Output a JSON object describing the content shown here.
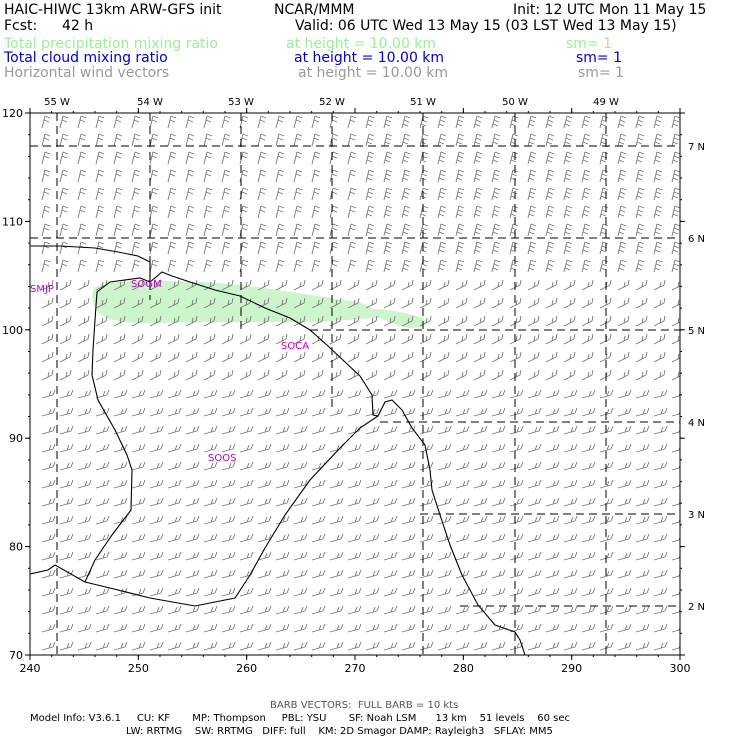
{
  "header": {
    "model_title": "HAIC-HIWC 13km ARW-GFS init",
    "org": "NCAR/MMM",
    "init": "Init: 12 UTC Mon 11 May 15",
    "fcst_label": "Fcst:",
    "fcst_value": "42 h",
    "valid": "Valid: 06 UTC Wed 13 May 15 (03 LST Wed 13 May 15)",
    "fields": [
      {
        "name": "Total precipitation mixing ratio",
        "height": "at height = 10.00 km",
        "sm": "sm= 1",
        "color": "#99ee99"
      },
      {
        "name": "Total cloud mixing ratio",
        "height": "at height = 10.00 km",
        "sm": "sm= 1",
        "color": "#0000cc"
      },
      {
        "name": "Horizontal wind vectors",
        "height": "at height = 10.00 km",
        "sm": "sm= 1",
        "color": "#999999"
      }
    ]
  },
  "map": {
    "x_ticks": [
      "240",
      "250",
      "260",
      "270",
      "280",
      "290",
      "300"
    ],
    "y_ticks": [
      "70",
      "80",
      "90",
      "100",
      "110",
      "120"
    ],
    "lon_labels": [
      "55 W",
      "54 W",
      "53 W",
      "52 W",
      "51 W",
      "50 W",
      "49 W"
    ],
    "lat_labels": [
      "7 N",
      "6 N",
      "5 N",
      "4 N",
      "3 N",
      "2 N"
    ],
    "stations": [
      "SMJP",
      "SOGM",
      "SOCA",
      "SOOS"
    ],
    "colors": {
      "coast": "#000000",
      "grid": "#000000",
      "barbs": "#777777",
      "precip": "#ccf5cc",
      "station": "#c000c0"
    }
  },
  "footer": {
    "barb_note": "BARB VECTORS:  FULL BARB = 10 kts",
    "model_info": "Model Info: V3.6.1     CU: KF       MP: Thompson     PBL: YSU       SF: Noah LSM      13 km    51 levels    60 sec",
    "model_info2": "LW: RRTMG    SW: RRTMG   DIFF: full    KM: 2D Smagor DAMP: Rayleigh3   SFLAY: MM5"
  }
}
